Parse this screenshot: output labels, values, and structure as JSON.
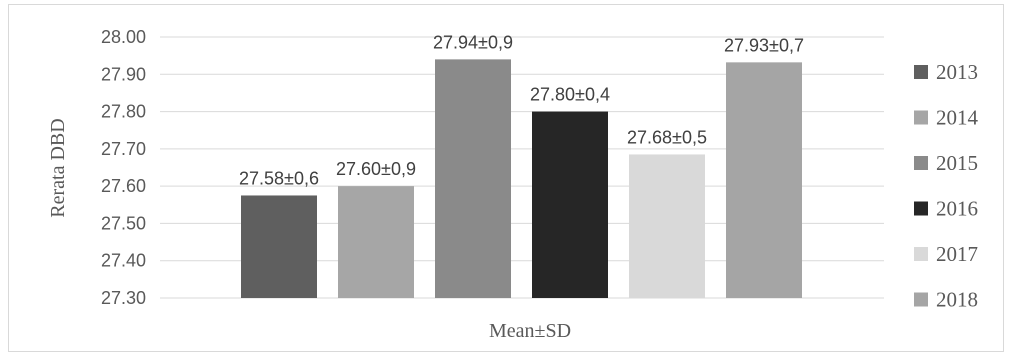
{
  "chart_data": {
    "type": "bar",
    "xlabel": "Mean±SD",
    "ylabel": "Rerata DBD",
    "ylim": [
      27.3,
      28.0
    ],
    "ytick_step": 0.1,
    "yticks": [
      "28.00",
      "27.90",
      "27.80",
      "27.70",
      "27.60",
      "27.50",
      "27.40",
      "27.30"
    ],
    "categories": [
      "Mean±SD"
    ],
    "grid": true,
    "legend_position": "right",
    "series": [
      {
        "name": "2013",
        "values": [
          27.575
        ],
        "label": "27.58±0,6",
        "color": "#5f5f5f"
      },
      {
        "name": "2014",
        "values": [
          27.6
        ],
        "label": "27.60±0,9",
        "color": "#a6a6a6"
      },
      {
        "name": "2015",
        "values": [
          27.94
        ],
        "label": "27.94±0,9",
        "color": "#8a8a8a"
      },
      {
        "name": "2016",
        "values": [
          27.8
        ],
        "label": "27.80±0,4",
        "color": "#262626"
      },
      {
        "name": "2017",
        "values": [
          27.685
        ],
        "label": "27.68±0,5",
        "color": "#d9d9d9"
      },
      {
        "name": "2018",
        "values": [
          27.932
        ],
        "label": "27.93±0,7",
        "color": "#a5a5a5"
      }
    ]
  }
}
